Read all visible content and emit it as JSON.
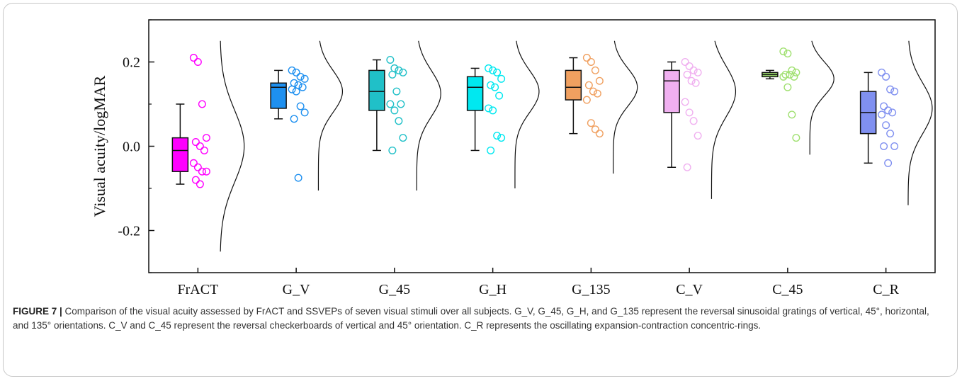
{
  "chart_data": {
    "type": "box",
    "ylabel": "Visual acuity/logMAR",
    "xlabel": "",
    "ylim": [
      -0.3,
      0.3
    ],
    "yticks": [
      -0.2,
      0.0,
      0.2
    ],
    "ytick_labels": [
      "-0.2",
      "0.0",
      "0.2"
    ],
    "grid": false,
    "categories": [
      "FrACT",
      "G_V",
      "G_45",
      "G_H",
      "G_135",
      "C_V",
      "C_45",
      "C_R"
    ],
    "colors": [
      "#ff00ff",
      "#1e90f0",
      "#20c0c8",
      "#00e8f0",
      "#f0a060",
      "#f0b0f0",
      "#a0e070",
      "#8090f0"
    ],
    "series": [
      {
        "box": {
          "min": -0.09,
          "q1": -0.06,
          "median": -0.01,
          "q3": 0.02,
          "max": 0.1
        },
        "points": [
          0.21,
          0.2,
          0.1,
          0.02,
          0.01,
          0.0,
          -0.01,
          -0.04,
          -0.05,
          -0.06,
          -0.06,
          -0.08,
          -0.09
        ],
        "density": {
          "center": 0.0,
          "sd": 0.085,
          "range": [
            -0.25,
            0.25
          ]
        }
      },
      {
        "box": {
          "min": 0.065,
          "q1": 0.09,
          "median": 0.14,
          "q3": 0.15,
          "max": 0.18
        },
        "points": [
          0.18,
          0.175,
          0.165,
          0.16,
          0.15,
          0.145,
          0.14,
          0.135,
          0.13,
          0.095,
          0.08,
          0.065,
          -0.075
        ],
        "density": {
          "center": 0.13,
          "sd": 0.05,
          "range": [
            -0.105,
            0.25
          ]
        }
      },
      {
        "box": {
          "min": -0.01,
          "q1": 0.085,
          "median": 0.13,
          "q3": 0.18,
          "max": 0.205
        },
        "points": [
          0.205,
          0.185,
          0.18,
          0.175,
          0.17,
          0.13,
          0.1,
          0.1,
          0.085,
          0.06,
          0.02,
          -0.01
        ],
        "density": {
          "center": 0.125,
          "sd": 0.055,
          "range": [
            -0.105,
            0.25
          ]
        }
      },
      {
        "box": {
          "min": -0.01,
          "q1": 0.085,
          "median": 0.14,
          "q3": 0.165,
          "max": 0.185
        },
        "points": [
          0.185,
          0.18,
          0.175,
          0.16,
          0.145,
          0.14,
          0.12,
          0.09,
          0.085,
          0.025,
          0.02,
          -0.01
        ],
        "density": {
          "center": 0.13,
          "sd": 0.05,
          "range": [
            -0.1,
            0.25
          ]
        }
      },
      {
        "box": {
          "min": 0.03,
          "q1": 0.11,
          "median": 0.14,
          "q3": 0.18,
          "max": 0.21
        },
        "points": [
          0.21,
          0.2,
          0.18,
          0.155,
          0.145,
          0.13,
          0.125,
          0.11,
          0.055,
          0.04,
          0.03
        ],
        "density": {
          "center": 0.14,
          "sd": 0.045,
          "range": [
            -0.065,
            0.25
          ]
        }
      },
      {
        "box": {
          "min": -0.05,
          "q1": 0.08,
          "median": 0.155,
          "q3": 0.18,
          "max": 0.2
        },
        "points": [
          0.2,
          0.19,
          0.18,
          0.175,
          0.17,
          0.155,
          0.15,
          0.105,
          0.08,
          0.06,
          0.025,
          -0.05
        ],
        "density": {
          "center": 0.13,
          "sd": 0.06,
          "range": [
            -0.125,
            0.25
          ]
        }
      },
      {
        "box": {
          "min": 0.16,
          "q1": 0.165,
          "median": 0.17,
          "q3": 0.175,
          "max": 0.18
        },
        "points": [
          0.225,
          0.22,
          0.18,
          0.175,
          0.17,
          0.17,
          0.165,
          0.165,
          0.14,
          0.075,
          0.02
        ],
        "density": {
          "center": 0.16,
          "sd": 0.04,
          "range": [
            -0.02,
            0.25
          ]
        }
      },
      {
        "box": {
          "min": -0.04,
          "q1": 0.03,
          "median": 0.08,
          "q3": 0.13,
          "max": 0.175
        },
        "points": [
          0.175,
          0.165,
          0.135,
          0.13,
          0.095,
          0.085,
          0.08,
          0.075,
          0.05,
          0.03,
          0.0,
          0.0,
          -0.04
        ],
        "density": {
          "center": 0.09,
          "sd": 0.06,
          "range": [
            -0.14,
            0.25
          ]
        }
      }
    ]
  },
  "caption": {
    "label": "FIGURE 7 |",
    "text": " Comparison of the visual acuity assessed by FrACT and SSVEPs of seven visual stimuli over all subjects. G_V, G_45, G_H, and G_135 represent the reversal sinusoidal gratings of vertical, 45°, horizontal, and 135° orientations. C_V and C_45 represent the reversal checkerboards of vertical and 45° orientation. C_R represents the oscillating expansion-contraction concentric-rings."
  }
}
